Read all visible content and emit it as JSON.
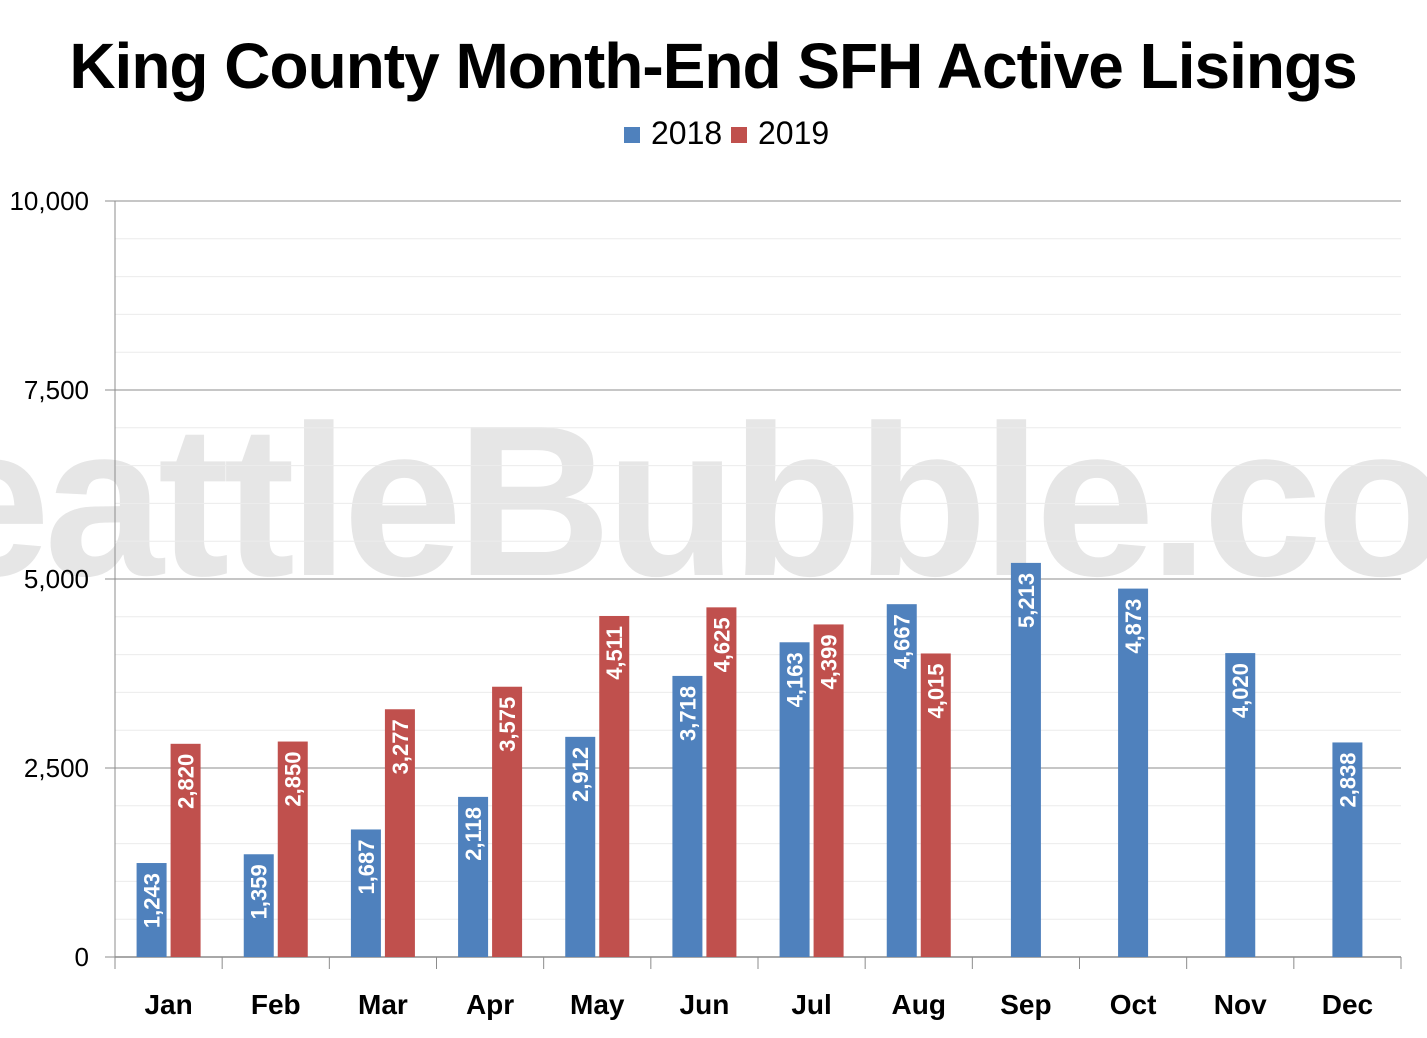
{
  "watermark": "SeattleBubble.com",
  "chart_data": {
    "type": "bar",
    "title": "King County Month-End SFH Active Lisings",
    "categories": [
      "Jan",
      "Feb",
      "Mar",
      "Apr",
      "May",
      "Jun",
      "Jul",
      "Aug",
      "Sep",
      "Oct",
      "Nov",
      "Dec"
    ],
    "series": [
      {
        "name": "2018",
        "color": "#4f81bd",
        "values": [
          1243,
          1359,
          1687,
          2118,
          2912,
          3718,
          4163,
          4667,
          5213,
          4873,
          4020,
          2838
        ]
      },
      {
        "name": "2019",
        "color": "#c0504d",
        "values": [
          2820,
          2850,
          3277,
          3575,
          4511,
          4625,
          4399,
          4015,
          null,
          null,
          null,
          null
        ]
      }
    ],
    "ylim": [
      0,
      10000
    ],
    "yticks": [
      0,
      2500,
      5000,
      7500,
      10000
    ],
    "ytick_labels": [
      "0",
      "2,500",
      "5,000",
      "7,500",
      "10,000"
    ],
    "xlabel": "",
    "ylabel": "",
    "grid": true,
    "legend": "top-center",
    "data_labels": true
  }
}
